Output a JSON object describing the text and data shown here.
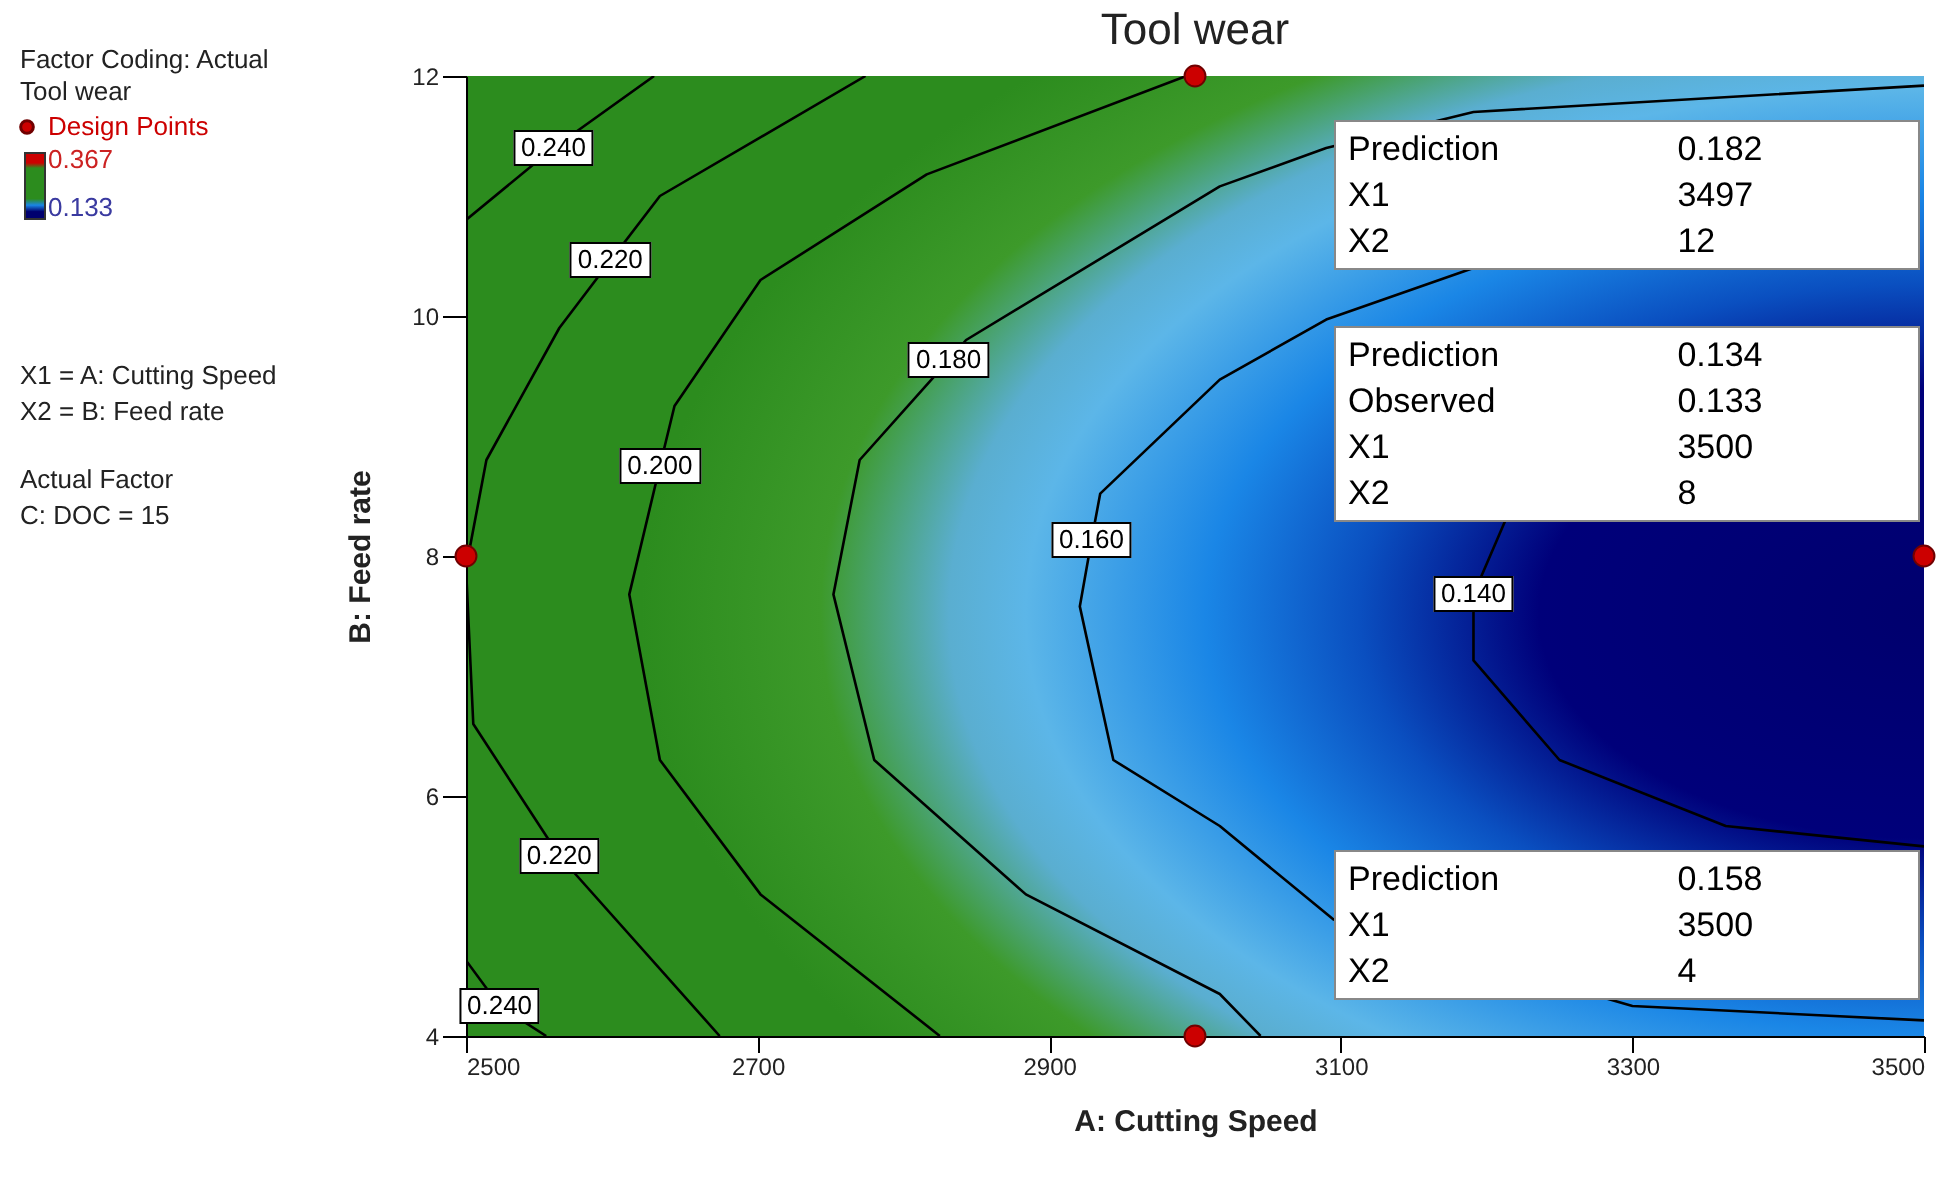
{
  "chart_data": {
    "type": "line",
    "title": "Tool wear",
    "xlabel": "A: Cutting Speed",
    "ylabel": "B: Feed rate",
    "xlim": [
      2500,
      3500
    ],
    "xticks": [
      2500,
      2700,
      2900,
      3100,
      3300,
      3500
    ],
    "ylim": [
      4,
      12
    ],
    "yticks": [
      4,
      6,
      8,
      10,
      12
    ],
    "legend": "left",
    "series": [
      {
        "color": "#000000",
        "x": [
          2500,
          2560,
          2629
        ],
        "values": [
          10.8,
          11.4,
          12
        ]
      },
      {
        "color": "#000000",
        "x": [
          2500,
          2523,
          2555
        ],
        "values": [
          4.63,
          4.25,
          4
        ]
      },
      {
        "color": "#000000",
        "x": [
          2774,
          2633,
          2599,
          2564,
          2514,
          2500,
          2505,
          2564,
          2674
        ],
        "values": [
          12,
          11.0,
          10.46,
          9.9,
          8.8,
          7.9,
          6.6,
          5.5,
          4
        ]
      },
      {
        "color": "#000000",
        "x": [
          2994,
          2816,
          2702,
          2643,
          2633,
          2612,
          2633,
          2702,
          2825
        ],
        "values": [
          12,
          11.18,
          10.3,
          9.25,
          8.75,
          7.68,
          6.3,
          5.18,
          4
        ]
      },
      {
        "color": "#000000",
        "x": [
          3500,
          3191,
          3090,
          3017,
          2843,
          2831,
          2770,
          2752,
          2780,
          2884,
          3017,
          3045
        ],
        "values": [
          11.92,
          11.7,
          11.4,
          11.08,
          9.8,
          9.63,
          8.8,
          7.68,
          6.3,
          5.18,
          4.35,
          4
        ]
      },
      {
        "color": "#000000",
        "x": [
          3191,
          3090,
          3017,
          2935,
          2929,
          2921,
          2944,
          3017,
          3095,
          3300,
          3500
        ],
        "values": [
          10.4,
          9.97,
          9.47,
          8.52,
          8.13,
          7.58,
          6.3,
          5.75,
          4.97,
          4.25,
          4.13
        ]
      },
      {
        "color": "#000000",
        "x": [
          3213,
          3191,
          3191,
          3250,
          3364,
          3500
        ],
        "values": [
          8.3,
          7.68,
          7.13,
          6.3,
          5.75,
          5.58
        ]
      },
      {
        "type": "scatter",
        "name": "Design Points",
        "color": "#cc0000",
        "marker": "circle",
        "x": [
          2500,
          3000,
          3000,
          3500
        ],
        "values": [
          8,
          12,
          4,
          8
        ]
      }
    ],
    "annotations": [
      "Factor Coding: Actual",
      "Tool wear",
      "0.367",
      "0.133",
      "X1 = A: Cutting Speed",
      "X2 = B: Feed rate",
      "Actual Factor",
      "C: DOC = 15",
      {
        "text": "0.240",
        "x": 2560,
        "y": 11.4
      },
      {
        "text": "0.220",
        "x": 2599,
        "y": 10.46
      },
      {
        "text": "0.180",
        "x": 2831,
        "y": 9.63
      },
      {
        "text": "0.200",
        "x": 2633,
        "y": 8.75
      },
      {
        "text": "0.160",
        "x": 2929,
        "y": 8.13
      },
      {
        "text": "0.220",
        "x": 2564,
        "y": 5.5
      },
      {
        "text": "0.240",
        "x": 2523,
        "y": 4.25
      },
      {
        "text": "0.140",
        "x": 3191,
        "y": 7.68
      },
      "Prediction 0.182",
      "X1 3497",
      "X2 12",
      "Prediction 0.134",
      "Observed 0.133",
      "X1 3500",
      "X2 8",
      "Prediction 0.158",
      "X1 3500",
      "X2 4"
    ]
  }
}
